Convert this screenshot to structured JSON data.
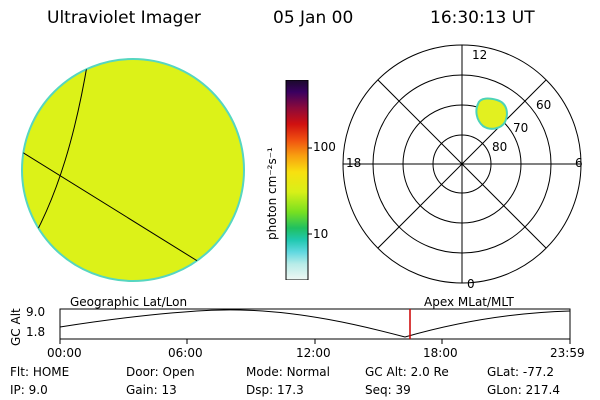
{
  "header": {
    "title": "Ultraviolet Imager",
    "date": "05 Jan 00",
    "time": "16:30:13 UT"
  },
  "colorbar": {
    "unit_label": "photon cm⁻²s⁻¹",
    "ticks": [
      "100",
      "10"
    ]
  },
  "polar_plot": {
    "mlt_labels": [
      "12",
      "18",
      "6",
      "0"
    ],
    "lat_labels": [
      "60",
      "70",
      "80"
    ]
  },
  "timeline": {
    "left_label": "Geographic Lat/Lon",
    "right_label": "Apex MLat/MLT",
    "axis_label": "GC Alt",
    "y_ticks": [
      "9.0",
      "1.8"
    ],
    "x_ticks": [
      "00:00",
      "06:00",
      "12:00",
      "18:00",
      "23:59"
    ],
    "marker_color": "#cc0000"
  },
  "footer": {
    "row1": [
      {
        "label": "Flt:",
        "value": "HOME"
      },
      {
        "label": "Door:",
        "value": "Open"
      },
      {
        "label": "Mode:",
        "value": "Normal"
      },
      {
        "label": "GC Alt:",
        "value": "2.0 Re"
      },
      {
        "label": "GLat:",
        "value": "-77.2"
      }
    ],
    "row2": [
      {
        "label": "IP:",
        "value": "9.0"
      },
      {
        "label": "Gain:",
        "value": "13"
      },
      {
        "label": "Dsp:",
        "value": "17.3"
      },
      {
        "label": "Seq:",
        "value": "39"
      },
      {
        "label": "GLon:",
        "value": "217.4"
      }
    ]
  },
  "colors": {
    "disk_fill": "#dcf218",
    "disk_edge": "#56d6c0",
    "aurora_fill": "#e2f020",
    "aurora_edge": "#4cd3b8"
  }
}
